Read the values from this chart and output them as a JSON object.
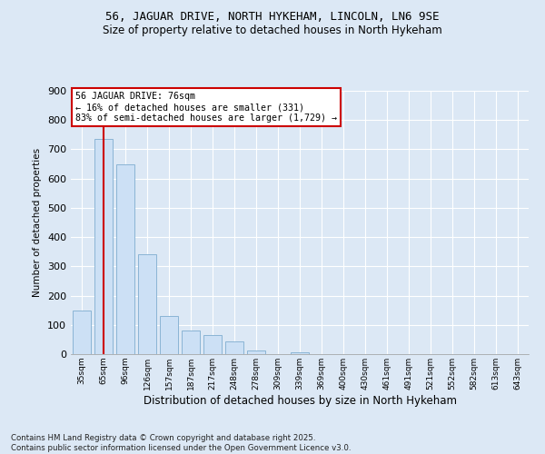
{
  "title1": "56, JAGUAR DRIVE, NORTH HYKEHAM, LINCOLN, LN6 9SE",
  "title2": "Size of property relative to detached houses in North Hykeham",
  "xlabel": "Distribution of detached houses by size in North Hykeham",
  "ylabel": "Number of detached properties",
  "categories": [
    "35sqm",
    "65sqm",
    "96sqm",
    "126sqm",
    "157sqm",
    "187sqm",
    "217sqm",
    "248sqm",
    "278sqm",
    "309sqm",
    "339sqm",
    "369sqm",
    "400sqm",
    "430sqm",
    "461sqm",
    "491sqm",
    "521sqm",
    "552sqm",
    "582sqm",
    "613sqm",
    "643sqm"
  ],
  "values": [
    150,
    735,
    650,
    340,
    130,
    80,
    65,
    45,
    12,
    0,
    5,
    0,
    0,
    0,
    0,
    0,
    0,
    0,
    0,
    0,
    0
  ],
  "bar_color": "#cce0f5",
  "bar_edge_color": "#8ab4d4",
  "bg_color": "#dce8f5",
  "grid_color": "#ffffff",
  "vline_color": "#cc0000",
  "annotation_text": "56 JAGUAR DRIVE: 76sqm\n← 16% of detached houses are smaller (331)\n83% of semi-detached houses are larger (1,729) →",
  "annotation_box_edge_color": "#cc0000",
  "annotation_box_facecolor": "#ffffff",
  "footnote": "Contains HM Land Registry data © Crown copyright and database right 2025.\nContains public sector information licensed under the Open Government Licence v3.0.",
  "ylim": [
    0,
    900
  ],
  "yticks": [
    0,
    100,
    200,
    300,
    400,
    500,
    600,
    700,
    800,
    900
  ]
}
